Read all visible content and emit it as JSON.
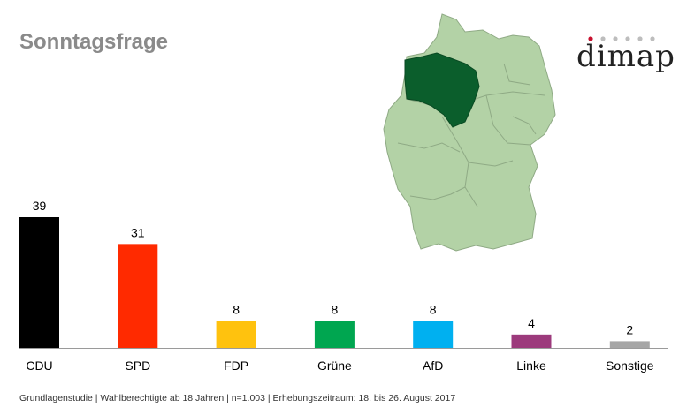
{
  "title": "Sonntagsfrage",
  "logo": {
    "text": "dimap"
  },
  "map": {
    "highlighted_region_color": "#0b5e2c",
    "base_color": "#b3d2a6"
  },
  "footer": "Grundlagenstudie | Wahlberechtigte ab 18 Jahren | n=1.003 | Erhebungszeitraum: 18. bis 26. August 2017",
  "chart_data": {
    "type": "bar",
    "categories": [
      "CDU",
      "SPD",
      "FDP",
      "Grüne",
      "AfD",
      "Linke",
      "Sonstige"
    ],
    "values": [
      39,
      31,
      8,
      8,
      8,
      4,
      2
    ],
    "colors": [
      "#000000",
      "#ff2a00",
      "#ffc20e",
      "#00a650",
      "#00b0f0",
      "#9c3a7c",
      "#a6a6a6"
    ],
    "ylim": [
      0,
      40
    ],
    "grid": false
  }
}
